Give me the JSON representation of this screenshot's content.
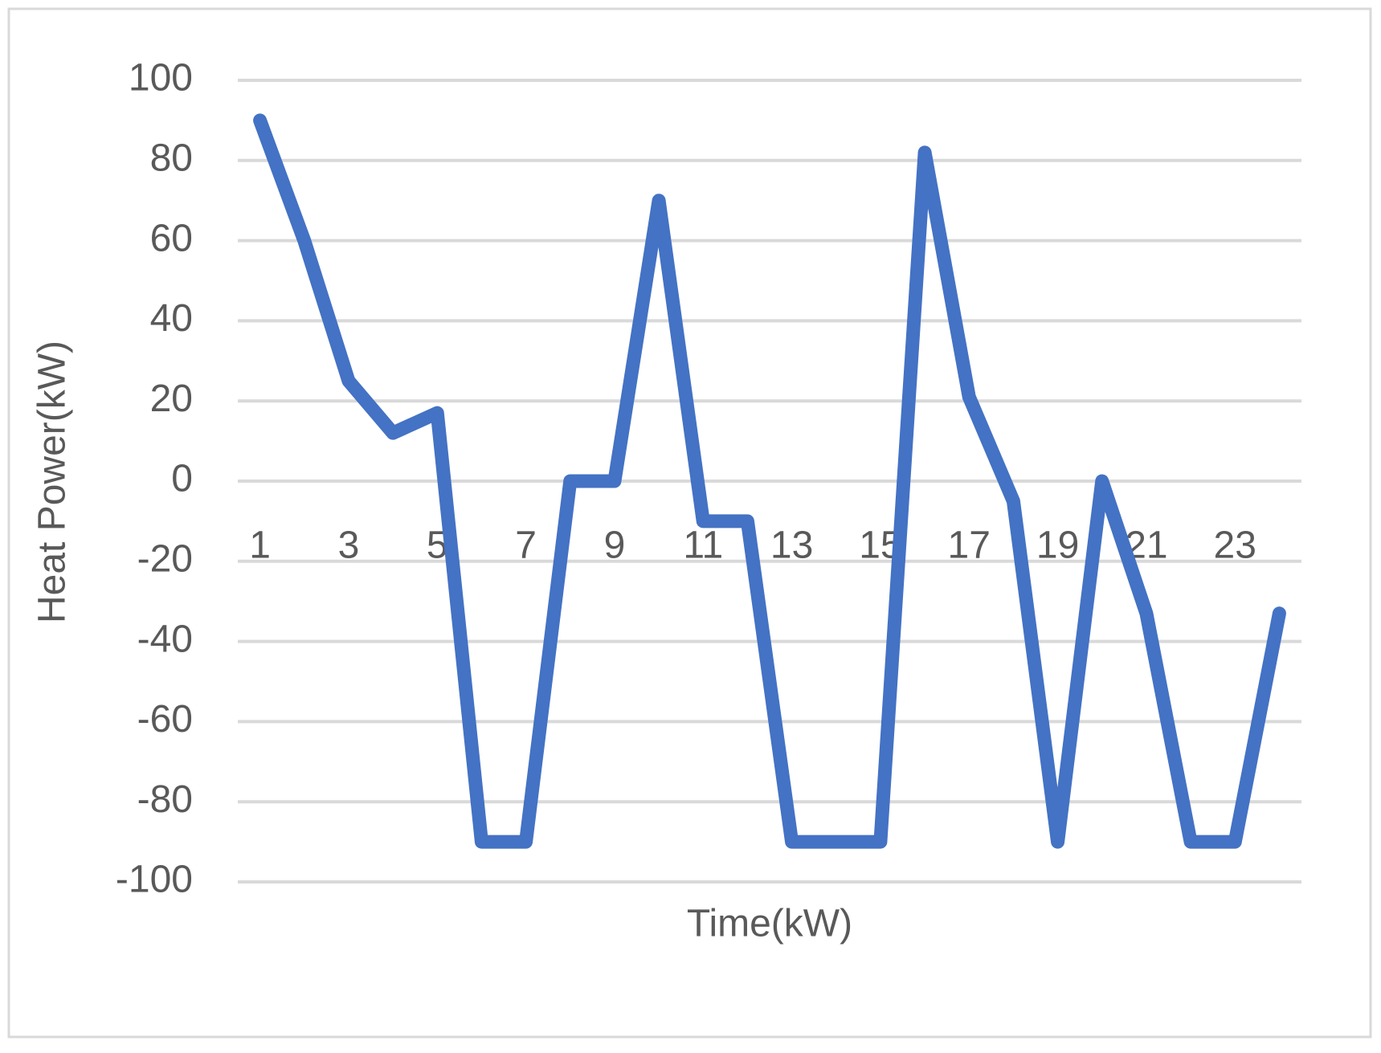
{
  "chart_data": {
    "type": "line",
    "x_label": "Time(kW)",
    "y_label": "Heat Power(kW)",
    "categories": [
      "1",
      null,
      "3",
      null,
      "5",
      null,
      "7",
      null,
      "9",
      null,
      "11",
      null,
      "13",
      null,
      "15",
      null,
      "17",
      null,
      "19",
      null,
      "21",
      null,
      "23",
      null
    ],
    "series": [
      {
        "name": "Heat Power",
        "color": "#4472c4",
        "values": [
          90,
          60,
          25,
          12,
          17,
          -90,
          -90,
          0,
          0,
          70,
          -10,
          -10,
          -90,
          -90,
          -90,
          82,
          21,
          -5,
          -90,
          0,
          -33,
          -90,
          -90,
          -33
        ]
      }
    ],
    "ylim": [
      -100,
      100
    ],
    "yticks": [
      -100,
      -80,
      -60,
      -40,
      -20,
      0,
      20,
      40,
      60,
      80,
      100
    ],
    "grid": true
  }
}
